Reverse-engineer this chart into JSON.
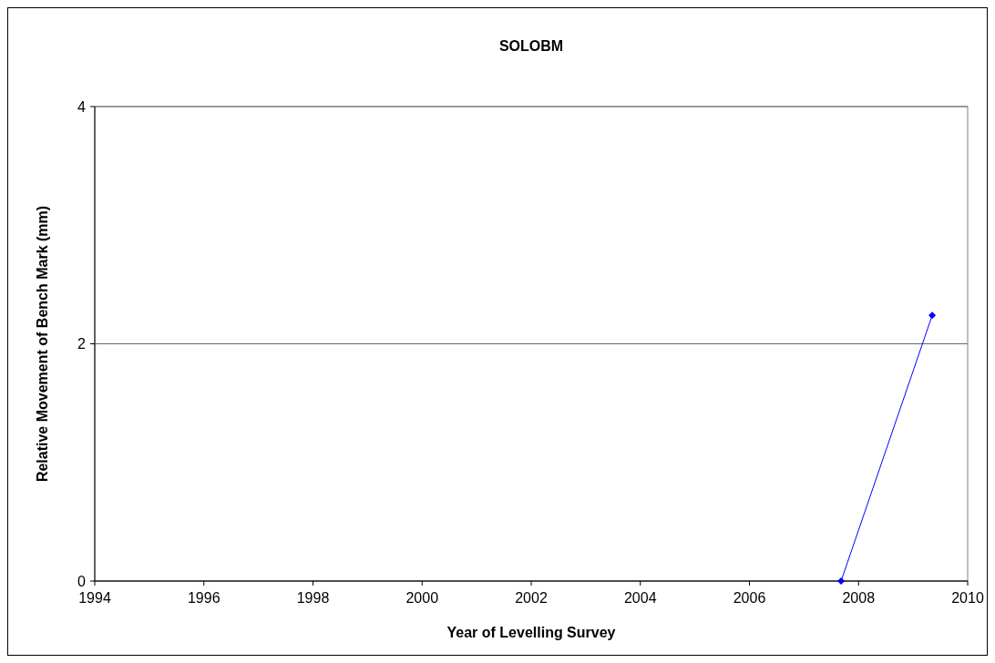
{
  "chart_data": {
    "type": "line",
    "title": "SOLOBM",
    "xlabel": "Year of Levelling Survey",
    "ylabel": "Relative Movement of Bench Mark (mm)",
    "x": [
      2007.68,
      2009.35
    ],
    "series": [
      {
        "color": "#0000ff",
        "values": [
          0,
          2.24
        ]
      }
    ],
    "xlim": [
      1994,
      2010
    ],
    "xticks": [
      1994,
      1996,
      1998,
      2000,
      2002,
      2004,
      2006,
      2008,
      2010
    ],
    "ylim": [
      0,
      4
    ],
    "yticks": [
      0,
      2,
      4
    ],
    "grid": "y",
    "marker": "diamond",
    "line_style": "solid"
  }
}
